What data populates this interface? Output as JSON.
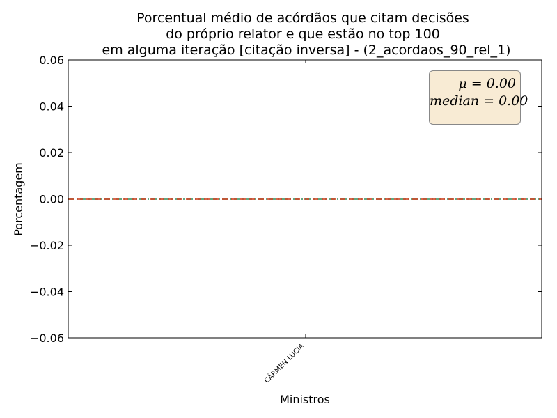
{
  "chart_data": {
    "type": "line",
    "title": [
      "Porcentual médio de acórdãos que citam decisões",
      "do próprio relator e que estão no top 100",
      "em alguma iteração [citação inversa] - (2_acordaos_90_rel_1)"
    ],
    "xlabel": "Ministros",
    "ylabel": "Porcentagem",
    "categories": [
      "CÁRMEN LÚCIA"
    ],
    "values": [
      0.0
    ],
    "ylim": [
      -0.06,
      0.06
    ],
    "yticks": [
      0.06,
      0.04,
      0.02,
      0.0,
      -0.02,
      -0.04,
      -0.06
    ],
    "ytick_labels": [
      "0.06",
      "0.04",
      "0.02",
      "0.00",
      "−0.02",
      "−0.04",
      "−0.06"
    ],
    "reference_lines": [
      {
        "label": "mean",
        "value": 0.0,
        "color": "#2e8b57",
        "style": "dash-dot"
      },
      {
        "label": "median",
        "value": 0.0,
        "color": "#cc3311",
        "style": "dashed"
      }
    ],
    "stats_box": {
      "mean_text": "μ = 0.00",
      "median_text": "median = 0.00",
      "placement": "top-right"
    },
    "grid": false
  }
}
